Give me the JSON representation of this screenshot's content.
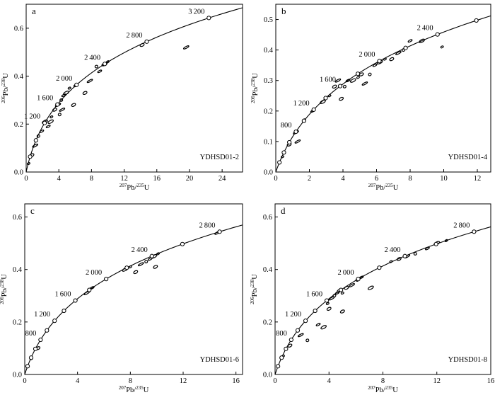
{
  "chart_data": [
    {
      "type": "scatter",
      "panel_label": "a",
      "sample": "YDHSD01-2",
      "xlabel": "207Pb/235U",
      "ylabel": "206Pb/238U",
      "xlim": [
        0,
        26.5
      ],
      "ylim": [
        0,
        0.7
      ],
      "xticks": [
        0,
        4,
        8,
        12,
        16,
        20,
        24
      ],
      "yticks": [
        0,
        0.2,
        0.4,
        0.6
      ],
      "age_markers": [
        400,
        800,
        1200,
        1600,
        2000,
        2400,
        2800,
        3200
      ],
      "age_labels": [
        1200,
        1600,
        2000,
        2400,
        2800,
        3200
      ],
      "ellipses": [
        {
          "x": 0.3,
          "y": 0.035
        },
        {
          "x": 0.7,
          "y": 0.07
        },
        {
          "x": 1.1,
          "y": 0.11
        },
        {
          "x": 1.5,
          "y": 0.15
        },
        {
          "x": 1.9,
          "y": 0.17
        },
        {
          "x": 2.3,
          "y": 0.21
        },
        {
          "x": 3.1,
          "y": 0.23
        },
        {
          "x": 3.5,
          "y": 0.26
        },
        {
          "x": 3.9,
          "y": 0.28
        },
        {
          "x": 4.3,
          "y": 0.3
        },
        {
          "x": 4.6,
          "y": 0.32
        },
        {
          "x": 4.9,
          "y": 0.33
        },
        {
          "x": 5.3,
          "y": 0.35
        },
        {
          "x": 5.8,
          "y": 0.28
        },
        {
          "x": 4.4,
          "y": 0.26
        },
        {
          "x": 4.1,
          "y": 0.24
        },
        {
          "x": 2.7,
          "y": 0.19
        },
        {
          "x": 3.0,
          "y": 0.21
        },
        {
          "x": 6.0,
          "y": 0.36
        },
        {
          "x": 7.2,
          "y": 0.33
        },
        {
          "x": 7.8,
          "y": 0.38
        },
        {
          "x": 8.6,
          "y": 0.44
        },
        {
          "x": 9.0,
          "y": 0.42
        },
        {
          "x": 9.6,
          "y": 0.45
        },
        {
          "x": 10.0,
          "y": 0.46
        },
        {
          "x": 14.2,
          "y": 0.53
        },
        {
          "x": 19.6,
          "y": 0.52
        }
      ]
    },
    {
      "type": "scatter",
      "panel_label": "b",
      "sample": "YDHSD01-4",
      "xlabel": "207Pb/235U",
      "ylabel": "206Pb/238U",
      "xlim": [
        0,
        12.8
      ],
      "ylim": [
        0,
        0.55
      ],
      "xticks": [
        0,
        2,
        4,
        6,
        8,
        10,
        12
      ],
      "yticks": [
        0,
        0.1,
        0.2,
        0.3,
        0.4,
        0.5
      ],
      "age_markers": [
        200,
        400,
        600,
        800,
        1000,
        1200,
        1400,
        1600,
        1800,
        2000,
        2200,
        2400,
        2600,
        2800
      ],
      "age_labels": [
        800,
        1200,
        1600,
        2000,
        2400
      ],
      "ellipses": [
        {
          "x": 0.4,
          "y": 0.05
        },
        {
          "x": 0.8,
          "y": 0.09
        },
        {
          "x": 1.2,
          "y": 0.13
        },
        {
          "x": 1.7,
          "y": 0.17
        },
        {
          "x": 2.2,
          "y": 0.2
        },
        {
          "x": 2.8,
          "y": 0.23
        },
        {
          "x": 3.2,
          "y": 0.25
        },
        {
          "x": 3.5,
          "y": 0.28
        },
        {
          "x": 3.7,
          "y": 0.3
        },
        {
          "x": 4.1,
          "y": 0.28
        },
        {
          "x": 4.3,
          "y": 0.3
        },
        {
          "x": 4.6,
          "y": 0.3
        },
        {
          "x": 4.9,
          "y": 0.31
        },
        {
          "x": 5.1,
          "y": 0.32
        },
        {
          "x": 5.3,
          "y": 0.29
        },
        {
          "x": 5.6,
          "y": 0.32
        },
        {
          "x": 5.9,
          "y": 0.35
        },
        {
          "x": 6.2,
          "y": 0.36
        },
        {
          "x": 6.5,
          "y": 0.37
        },
        {
          "x": 6.9,
          "y": 0.37
        },
        {
          "x": 7.3,
          "y": 0.39
        },
        {
          "x": 7.6,
          "y": 0.4
        },
        {
          "x": 8.0,
          "y": 0.43
        },
        {
          "x": 8.7,
          "y": 0.43
        },
        {
          "x": 9.9,
          "y": 0.41
        },
        {
          "x": 3.9,
          "y": 0.24
        },
        {
          "x": 1.3,
          "y": 0.1
        }
      ]
    },
    {
      "type": "scatter",
      "panel_label": "c",
      "sample": "YDHSD01-6",
      "xlabel": "207Pb/235U",
      "ylabel": "206Pb/238U",
      "xlim": [
        0,
        16.5
      ],
      "ylim": [
        0,
        0.65
      ],
      "xticks": [
        0,
        4,
        8,
        12,
        16
      ],
      "yticks": [
        0,
        0.2,
        0.4,
        0.6
      ],
      "age_markers": [
        200,
        400,
        600,
        800,
        1000,
        1200,
        1400,
        1600,
        1800,
        2000,
        2200,
        2400,
        2600,
        2800
      ],
      "age_labels": [
        800,
        1200,
        1600,
        2000,
        2400,
        2800
      ],
      "ellipses": [
        {
          "x": 0.5,
          "y": 0.06
        },
        {
          "x": 1.0,
          "y": 0.1
        },
        {
          "x": 4.7,
          "y": 0.31
        },
        {
          "x": 4.9,
          "y": 0.32
        },
        {
          "x": 5.1,
          "y": 0.33
        },
        {
          "x": 7.6,
          "y": 0.4
        },
        {
          "x": 8.0,
          "y": 0.41
        },
        {
          "x": 8.4,
          "y": 0.39
        },
        {
          "x": 8.8,
          "y": 0.42
        },
        {
          "x": 9.2,
          "y": 0.43
        },
        {
          "x": 9.5,
          "y": 0.44
        },
        {
          "x": 9.8,
          "y": 0.45
        },
        {
          "x": 10.1,
          "y": 0.46
        },
        {
          "x": 9.9,
          "y": 0.41
        },
        {
          "x": 14.6,
          "y": 0.54
        }
      ]
    },
    {
      "type": "scatter",
      "panel_label": "d",
      "sample": "YDHSD01-8",
      "xlabel": "207Pb/235U",
      "ylabel": "206Pb/238U",
      "xlim": [
        0,
        16
      ],
      "ylim": [
        0,
        0.65
      ],
      "xticks": [
        0,
        4,
        8,
        12,
        16
      ],
      "yticks": [
        0,
        0.2,
        0.4,
        0.6
      ],
      "age_markers": [
        200,
        400,
        600,
        800,
        1000,
        1200,
        1400,
        1600,
        1800,
        2000,
        2200,
        2400,
        2600,
        2800
      ],
      "age_labels": [
        800,
        1200,
        1600,
        2000,
        2400,
        2800
      ],
      "ellipses": [
        {
          "x": 0.6,
          "y": 0.07
        },
        {
          "x": 1.1,
          "y": 0.11
        },
        {
          "x": 1.9,
          "y": 0.15
        },
        {
          "x": 2.4,
          "y": 0.13
        },
        {
          "x": 3.2,
          "y": 0.19
        },
        {
          "x": 3.6,
          "y": 0.18
        },
        {
          "x": 3.9,
          "y": 0.27
        },
        {
          "x": 4.0,
          "y": 0.25
        },
        {
          "x": 4.2,
          "y": 0.29
        },
        {
          "x": 4.4,
          "y": 0.3
        },
        {
          "x": 4.6,
          "y": 0.31
        },
        {
          "x": 4.8,
          "y": 0.32
        },
        {
          "x": 5.0,
          "y": 0.31
        },
        {
          "x": 5.3,
          "y": 0.33
        },
        {
          "x": 5.7,
          "y": 0.34
        },
        {
          "x": 6.1,
          "y": 0.36
        },
        {
          "x": 6.4,
          "y": 0.37
        },
        {
          "x": 7.1,
          "y": 0.33
        },
        {
          "x": 8.6,
          "y": 0.43
        },
        {
          "x": 9.2,
          "y": 0.44
        },
        {
          "x": 9.8,
          "y": 0.45
        },
        {
          "x": 10.4,
          "y": 0.46
        },
        {
          "x": 11.3,
          "y": 0.48
        },
        {
          "x": 12.0,
          "y": 0.5
        },
        {
          "x": 12.7,
          "y": 0.51
        },
        {
          "x": 5.0,
          "y": 0.24
        }
      ]
    }
  ]
}
